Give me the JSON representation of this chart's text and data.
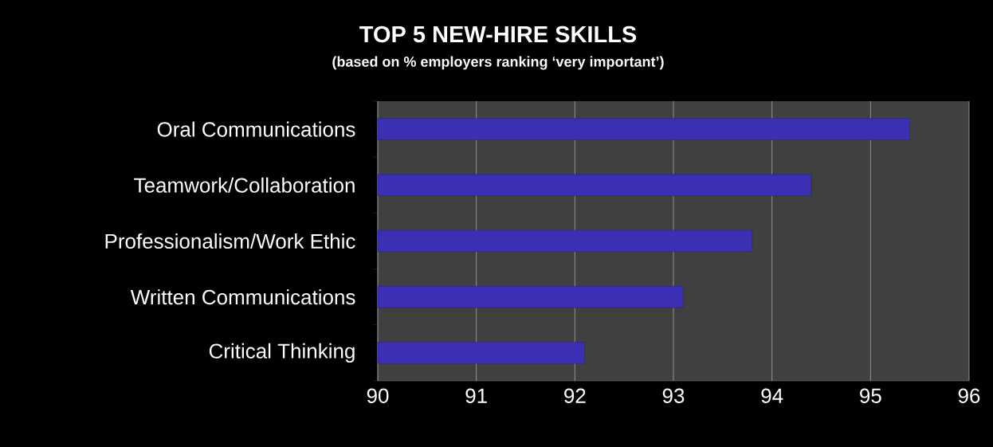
{
  "chart_data": {
    "type": "bar",
    "orientation": "horizontal",
    "title": "TOP 5 NEW-HIRE SKILLS",
    "subtitle": "(based on % employers ranking ‘very important’)",
    "categories": [
      "Oral Communications",
      "Teamwork/Collaboration",
      "Professionalism/Work Ethic",
      "Written Communications",
      "Critical Thinking"
    ],
    "values": [
      95.4,
      94.4,
      93.8,
      93.1,
      92.1
    ],
    "color": "#3b30b4",
    "xlim": [
      90,
      96
    ],
    "xticks": [
      90,
      91,
      92,
      93,
      94,
      95,
      96
    ],
    "grid": "x"
  }
}
